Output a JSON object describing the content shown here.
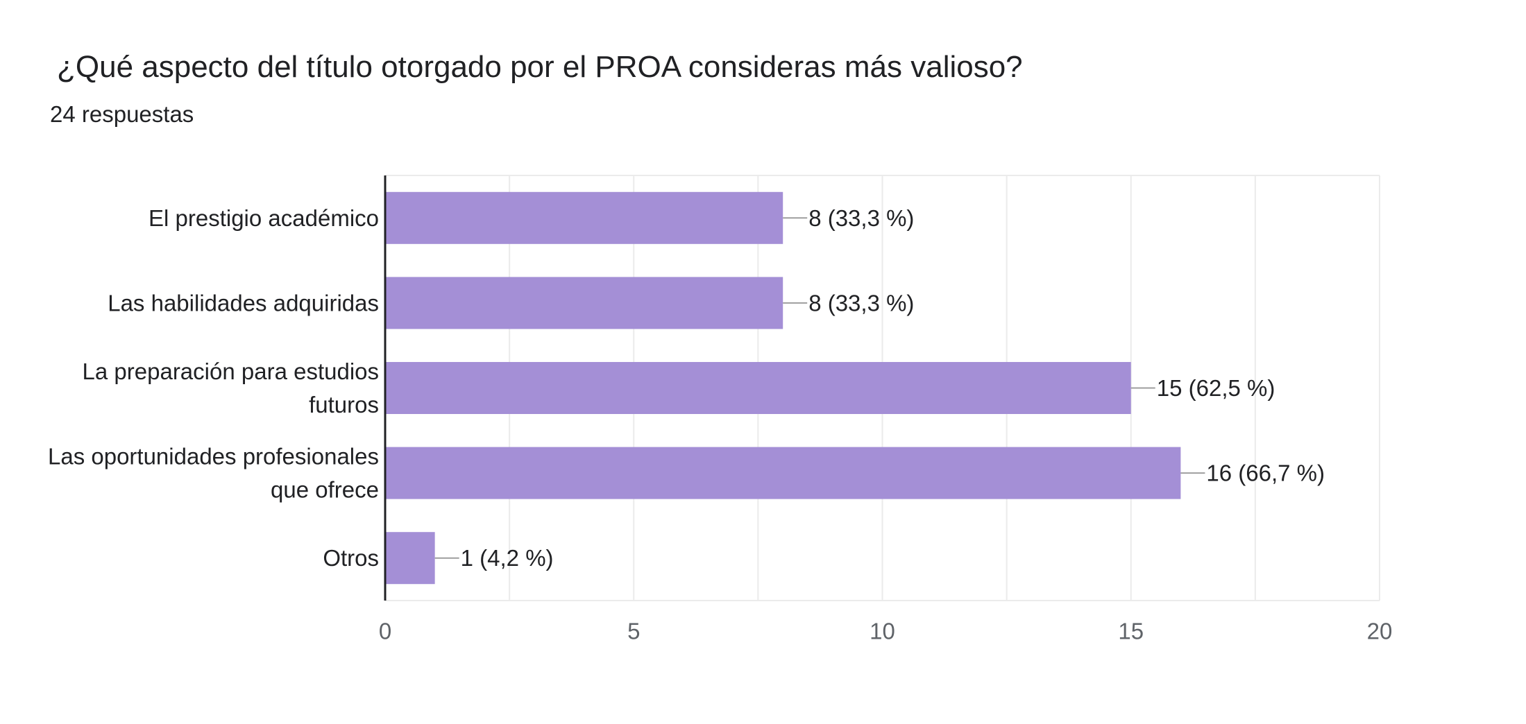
{
  "header": {
    "title": "¿Qué aspecto del título otorgado por el PROA consideras más valioso?",
    "responses": "24 respuestas"
  },
  "colors": {
    "bar": "#a48fd6",
    "grid": "#ebebeb",
    "axis": "#202124",
    "leader": "#9e9e9e",
    "text": "#202124",
    "tick_text": "#5f6368"
  },
  "chart_data": {
    "type": "bar",
    "orientation": "horizontal",
    "title": "¿Qué aspecto del título otorgado por el PROA consideras más valioso?",
    "subtitle": "24 respuestas",
    "categories": [
      [
        "El prestigio académico"
      ],
      [
        "Las habilidades adquiridas"
      ],
      [
        "La preparación para estudios",
        "futuros"
      ],
      [
        "Las oportunidades profesionales",
        "que ofrece"
      ],
      [
        "Otros"
      ]
    ],
    "values": [
      8,
      8,
      15,
      16,
      1
    ],
    "data_labels": [
      "8 (33,3 %)",
      "8 (33,3 %)",
      "15 (62,5 %)",
      "16 (66,7 %)",
      "1 (4,2 %)"
    ],
    "xlim": [
      0,
      20
    ],
    "xticks": [
      "0",
      "5",
      "10",
      "15",
      "20"
    ],
    "minor_gridlines": true,
    "legend": "none"
  }
}
